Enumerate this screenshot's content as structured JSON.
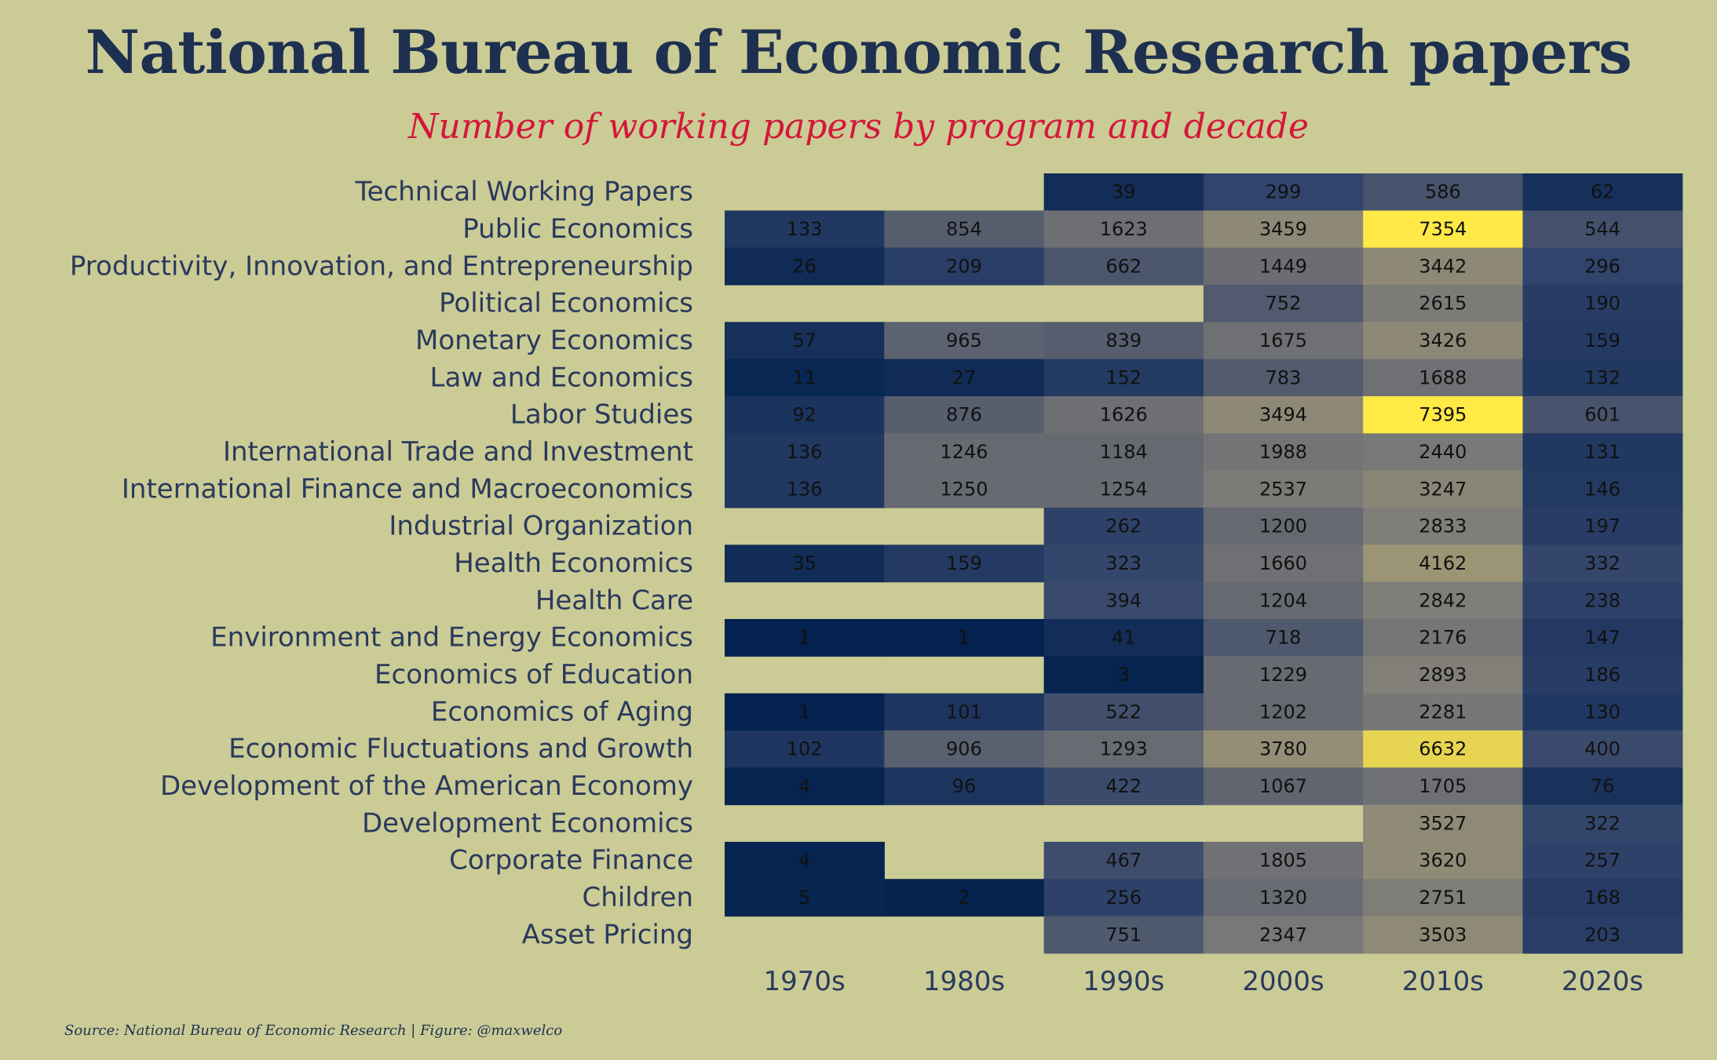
{
  "header": {
    "title": "National Bureau of Economic Research papers",
    "subtitle": "Number of working papers by program and decade"
  },
  "footer": {
    "source": "Source: National Bureau of Economic Research | Figure: @maxwelco"
  },
  "colors": {
    "background": "#cbcb96",
    "title": "#1e3050",
    "subtitle": "#d3173a",
    "scale": [
      "#00204d",
      "#31446b",
      "#666970",
      "#7c7b78",
      "#a59c74",
      "#ffea46"
    ]
  },
  "chart_data": {
    "type": "heatmap",
    "title": "National Bureau of Economic Research papers",
    "subtitle": "Number of working papers by program and decade",
    "x": [
      "1970s",
      "1980s",
      "1990s",
      "2000s",
      "2010s",
      "2020s"
    ],
    "y": [
      "Technical Working Papers",
      "Public Economics",
      "Productivity, Innovation, and Entrepreneurship",
      "Political Economics",
      "Monetary Economics",
      "Law and Economics",
      "Labor Studies",
      "International Trade and Investment",
      "International Finance and Macroeconomics",
      "Industrial Organization",
      "Health Economics",
      "Health Care",
      "Environment and Energy Economics",
      "Economics of Education",
      "Economics of Aging",
      "Economic Fluctuations and Growth",
      "Development of the American Economy",
      "Development Economics",
      "Corporate Finance",
      "Children",
      "Asset Pricing"
    ],
    "values": [
      [
        null,
        null,
        39,
        299,
        586,
        62
      ],
      [
        133,
        854,
        1623,
        3459,
        7354,
        544
      ],
      [
        26,
        209,
        662,
        1449,
        3442,
        296
      ],
      [
        null,
        null,
        null,
        752,
        2615,
        190
      ],
      [
        57,
        965,
        839,
        1675,
        3426,
        159
      ],
      [
        11,
        27,
        152,
        783,
        1688,
        132
      ],
      [
        92,
        876,
        1626,
        3494,
        7395,
        601
      ],
      [
        136,
        1246,
        1184,
        1988,
        2440,
        131
      ],
      [
        136,
        1250,
        1254,
        2537,
        3247,
        146
      ],
      [
        null,
        null,
        262,
        1200,
        2833,
        197
      ],
      [
        35,
        159,
        323,
        1660,
        4162,
        332
      ],
      [
        null,
        null,
        394,
        1204,
        2842,
        238
      ],
      [
        1,
        1,
        41,
        718,
        2176,
        147
      ],
      [
        null,
        null,
        3,
        1229,
        2893,
        186
      ],
      [
        1,
        101,
        522,
        1202,
        2281,
        130
      ],
      [
        102,
        906,
        1293,
        3780,
        6632,
        400
      ],
      [
        4,
        96,
        422,
        1067,
        1705,
        76
      ],
      [
        null,
        null,
        null,
        null,
        3527,
        322
      ],
      [
        4,
        null,
        467,
        1805,
        3620,
        257
      ],
      [
        5,
        2,
        256,
        1320,
        2751,
        168
      ],
      [
        null,
        null,
        751,
        2347,
        3503,
        203
      ]
    ],
    "color_scale": "cividis",
    "value_range": [
      1,
      7395
    ],
    "legend": "none",
    "grid": false
  }
}
